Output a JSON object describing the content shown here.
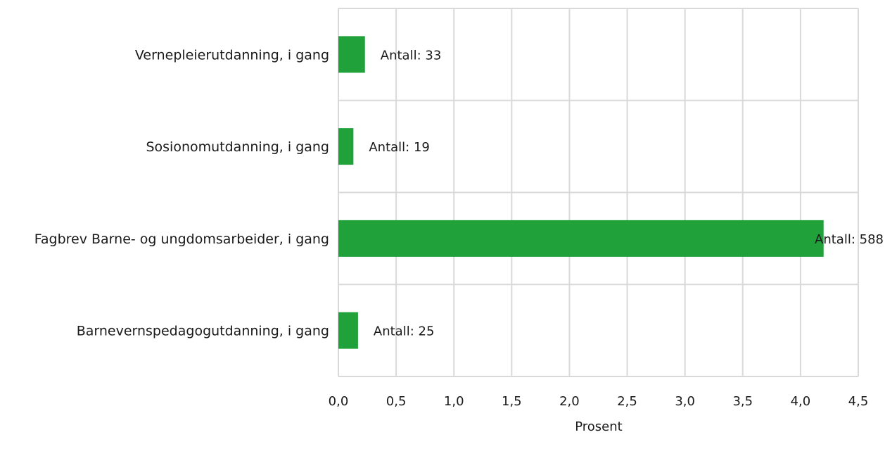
{
  "chart_data": {
    "type": "bar",
    "orientation": "horizontal",
    "categories": [
      "Vernepleierutdanning, i gang",
      "Sosionomutdanning, i gang",
      "Fagbrev Barne- og ungdomsarbeider, i gang",
      "Barnevernspedagogutdanning, i gang"
    ],
    "values": [
      0.23,
      0.13,
      4.2,
      0.17
    ],
    "data_labels": [
      "Antall: 33",
      "Antall: 19",
      "Antall: 588",
      "Antall: 25"
    ],
    "xlabel": "Prosent",
    "ylabel": "",
    "xlim": [
      0,
      4.5
    ],
    "xticks": [
      0,
      0.5,
      1.0,
      1.5,
      2.0,
      2.5,
      3.0,
      3.5,
      4.0,
      4.5
    ],
    "xtick_labels": [
      "0,0",
      "0,5",
      "1,0",
      "1,5",
      "2,0",
      "2,5",
      "3,0",
      "3,5",
      "4,0",
      "4,5"
    ],
    "grid": true,
    "bar_color": "#21a13a",
    "grid_color": "#d9d9d9"
  }
}
